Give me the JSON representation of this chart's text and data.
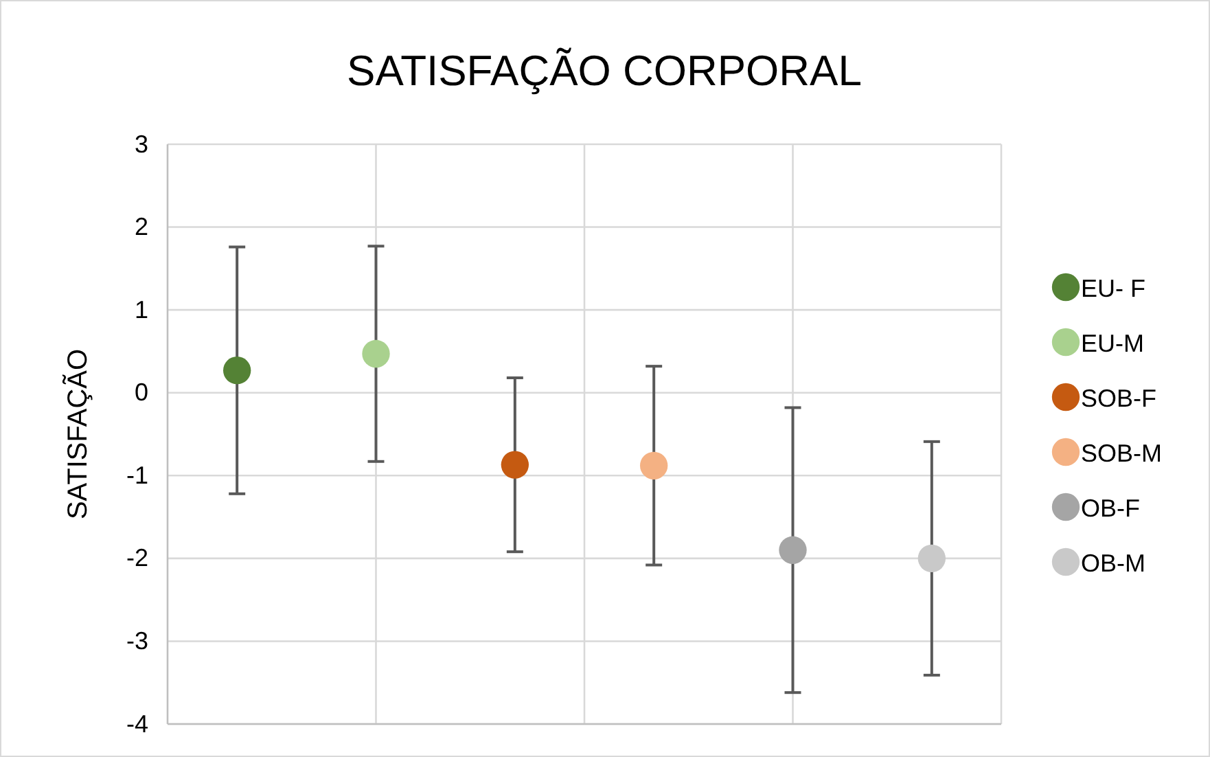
{
  "chart_data": {
    "type": "scatter",
    "title": "SATISFAÇÃO CORPORAL",
    "ylabel": "SATISFAÇÃO",
    "categories": [
      null,
      null,
      null,
      null,
      null,
      null
    ],
    "ylim": [
      -4,
      3
    ],
    "yticks": [
      -4,
      -3,
      -2,
      -1,
      0,
      1,
      2,
      3
    ],
    "grid": true,
    "legend": "right",
    "marker": "circle",
    "series": [
      {
        "name": "EU- F",
        "color": "#548235",
        "values": [
          0.27,
          null,
          null,
          null,
          null,
          null
        ],
        "errors": [
          1.49,
          null,
          null,
          null,
          null,
          null
        ]
      },
      {
        "name": "EU-M",
        "color": "#a9d18e",
        "values": [
          null,
          0.47,
          null,
          null,
          null,
          null
        ],
        "errors": [
          null,
          1.3,
          null,
          null,
          null,
          null
        ]
      },
      {
        "name": "SOB-F",
        "color": "#c55a11",
        "values": [
          null,
          null,
          -0.87,
          null,
          null,
          null
        ],
        "errors": [
          null,
          null,
          1.05,
          null,
          null,
          null
        ]
      },
      {
        "name": "SOB-M",
        "color": "#f4b183",
        "values": [
          null,
          null,
          null,
          -0.88,
          null,
          null
        ],
        "errors": [
          null,
          null,
          null,
          1.2,
          null,
          null
        ]
      },
      {
        "name": "OB-F",
        "color": "#a5a5a5",
        "values": [
          null,
          null,
          null,
          null,
          -1.9,
          null
        ],
        "errors": [
          null,
          null,
          null,
          null,
          1.72,
          null
        ]
      },
      {
        "name": "OB-M",
        "color": "#c9c9c9",
        "values": [
          null,
          null,
          null,
          null,
          null,
          -2.0
        ],
        "errors": [
          null,
          null,
          null,
          null,
          null,
          1.41
        ]
      }
    ]
  }
}
